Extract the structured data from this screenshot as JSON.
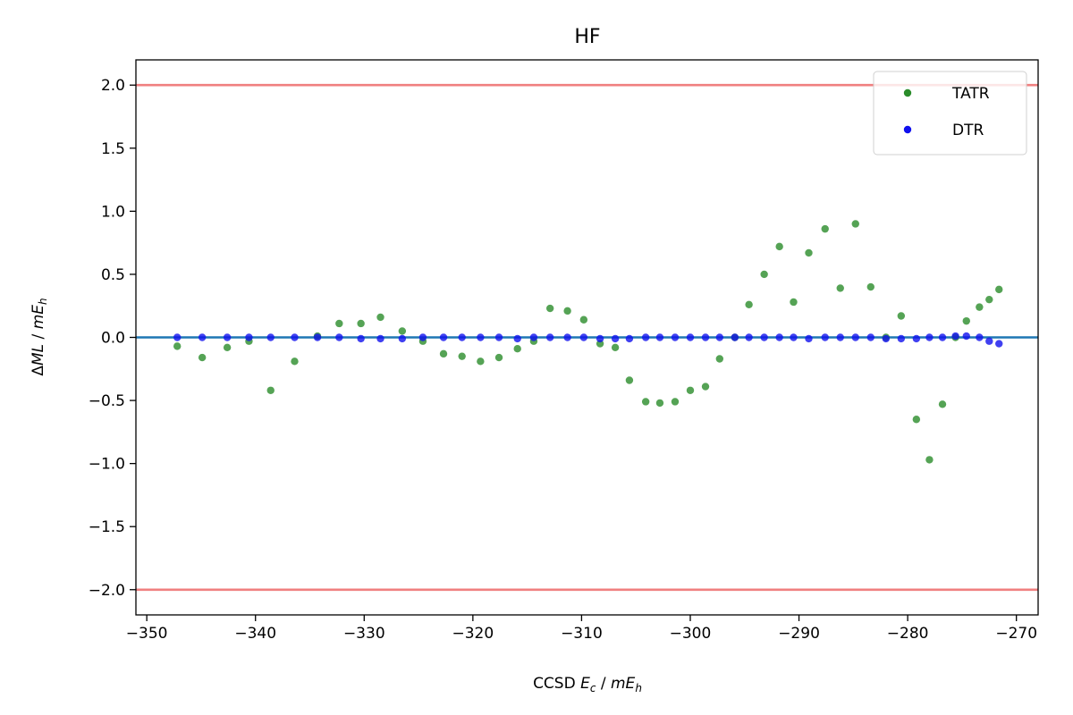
{
  "chart_data": {
    "type": "scatter",
    "title": "HF",
    "xlabel": "CCSD E_c / mE_h",
    "ylabel": "ΔML / mE_h",
    "xlim": [
      -351,
      -268
    ],
    "ylim": [
      -2.2,
      2.2
    ],
    "xticks": [
      -350,
      -340,
      -330,
      -320,
      -310,
      -300,
      -290,
      -280,
      -270
    ],
    "yticks": [
      2.0,
      1.5,
      1.0,
      0.5,
      0.0,
      -0.5,
      -1.0,
      -1.5,
      -2.0
    ],
    "xtick_labels": [
      "−350",
      "−340",
      "−330",
      "−320",
      "−310",
      "−300",
      "−290",
      "−280",
      "−270"
    ],
    "ytick_labels": [
      "2.0",
      "1.5",
      "1.0",
      "0.5",
      "0.0",
      "−0.5",
      "−1.0",
      "−1.5",
      "−2.0"
    ],
    "grid": false,
    "legend_position": "top-right",
    "reference_lines": [
      {
        "y": 2.0,
        "color": "#f08080"
      },
      {
        "y": -2.0,
        "color": "#f08080"
      },
      {
        "y": 0.0,
        "color": "#1f77b4"
      }
    ],
    "series": [
      {
        "name": "TATR",
        "color": "#2a8c2a",
        "points": [
          [
            -347.2,
            -0.07
          ],
          [
            -344.9,
            -0.16
          ],
          [
            -342.6,
            -0.08
          ],
          [
            -340.6,
            -0.03
          ],
          [
            -338.6,
            -0.42
          ],
          [
            -336.4,
            -0.19
          ],
          [
            -334.3,
            0.01
          ],
          [
            -332.3,
            0.11
          ],
          [
            -330.3,
            0.11
          ],
          [
            -328.5,
            0.16
          ],
          [
            -326.5,
            0.05
          ],
          [
            -324.6,
            -0.03
          ],
          [
            -322.7,
            -0.13
          ],
          [
            -321.0,
            -0.15
          ],
          [
            -319.3,
            -0.19
          ],
          [
            -317.6,
            -0.16
          ],
          [
            -315.9,
            -0.09
          ],
          [
            -314.4,
            -0.03
          ],
          [
            -312.9,
            0.23
          ],
          [
            -311.3,
            0.21
          ],
          [
            -309.8,
            0.14
          ],
          [
            -308.3,
            -0.05
          ],
          [
            -306.9,
            -0.08
          ],
          [
            -305.6,
            -0.34
          ],
          [
            -304.1,
            -0.51
          ],
          [
            -302.8,
            -0.52
          ],
          [
            -301.4,
            -0.51
          ],
          [
            -300.0,
            -0.42
          ],
          [
            -298.6,
            -0.39
          ],
          [
            -297.3,
            -0.17
          ],
          [
            -295.9,
            0.0
          ],
          [
            -294.6,
            0.26
          ],
          [
            -293.2,
            0.5
          ],
          [
            -291.8,
            0.72
          ],
          [
            -290.5,
            0.28
          ],
          [
            -289.1,
            0.67
          ],
          [
            -287.6,
            0.86
          ],
          [
            -286.2,
            0.39
          ],
          [
            -284.8,
            0.9
          ],
          [
            -283.4,
            0.4
          ],
          [
            -282.0,
            0.0
          ],
          [
            -280.6,
            0.17
          ],
          [
            -279.2,
            -0.65
          ],
          [
            -278.0,
            -0.97
          ],
          [
            -276.8,
            -0.53
          ],
          [
            -275.6,
            0.0
          ],
          [
            -274.6,
            0.13
          ],
          [
            -273.4,
            0.24
          ],
          [
            -272.5,
            0.3
          ],
          [
            -271.6,
            0.38
          ]
        ]
      },
      {
        "name": "DTR",
        "color": "#1010ee",
        "points": [
          [
            -347.2,
            0.0
          ],
          [
            -344.9,
            0.0
          ],
          [
            -342.6,
            0.0
          ],
          [
            -340.6,
            0.0
          ],
          [
            -338.6,
            0.0
          ],
          [
            -336.4,
            0.0
          ],
          [
            -334.3,
            0.0
          ],
          [
            -332.3,
            0.0
          ],
          [
            -330.3,
            -0.01
          ],
          [
            -328.5,
            -0.01
          ],
          [
            -326.5,
            -0.01
          ],
          [
            -324.6,
            0.0
          ],
          [
            -322.7,
            0.0
          ],
          [
            -321.0,
            0.0
          ],
          [
            -319.3,
            0.0
          ],
          [
            -317.6,
            0.0
          ],
          [
            -315.9,
            -0.01
          ],
          [
            -314.4,
            0.0
          ],
          [
            -312.9,
            0.0
          ],
          [
            -311.3,
            0.0
          ],
          [
            -309.8,
            0.0
          ],
          [
            -308.3,
            -0.01
          ],
          [
            -306.9,
            -0.01
          ],
          [
            -305.6,
            -0.01
          ],
          [
            -304.1,
            0.0
          ],
          [
            -302.8,
            0.0
          ],
          [
            -301.4,
            0.0
          ],
          [
            -300.0,
            0.0
          ],
          [
            -298.6,
            0.0
          ],
          [
            -297.3,
            0.0
          ],
          [
            -295.9,
            0.0
          ],
          [
            -294.6,
            0.0
          ],
          [
            -293.2,
            0.0
          ],
          [
            -291.8,
            0.0
          ],
          [
            -290.5,
            0.0
          ],
          [
            -289.1,
            -0.01
          ],
          [
            -287.6,
            0.0
          ],
          [
            -286.2,
            0.0
          ],
          [
            -284.8,
            0.0
          ],
          [
            -283.4,
            0.0
          ],
          [
            -282.0,
            -0.01
          ],
          [
            -280.6,
            -0.01
          ],
          [
            -279.2,
            -0.01
          ],
          [
            -278.0,
            0.0
          ],
          [
            -276.8,
            0.0
          ],
          [
            -275.6,
            0.01
          ],
          [
            -274.6,
            0.01
          ],
          [
            -273.4,
            0.0
          ],
          [
            -272.5,
            -0.03
          ],
          [
            -271.6,
            -0.05
          ]
        ]
      }
    ]
  }
}
